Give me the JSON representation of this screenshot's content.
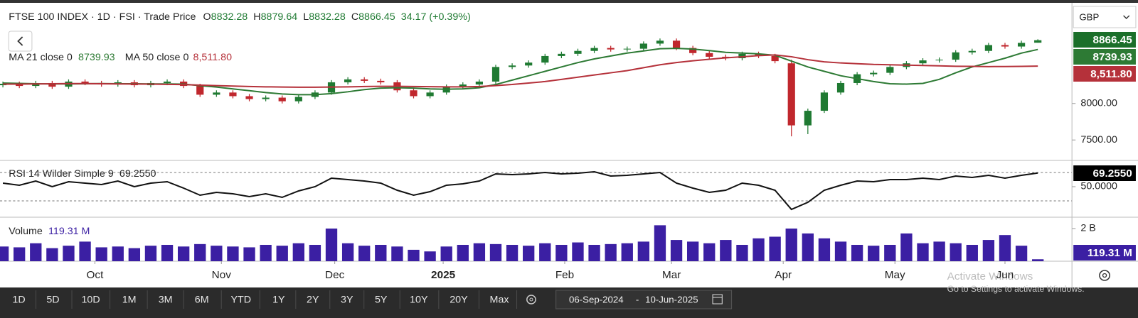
{
  "chart_data": [
    {
      "type": "candlestick",
      "title": "FTSE 100 INDEX · 1D · FSI  · Trade Price",
      "ohlc_labels": [
        "O",
        "H",
        "L",
        "C"
      ],
      "change": "34.17 (+0.39%)",
      "currency": "GBP",
      "colors": {
        "up": "#1f7a32",
        "down": "#c0272d"
      },
      "ylim": [
        7220,
        9320
      ],
      "yticks": [
        {
          "value": 8000,
          "label": "8000.00"
        },
        {
          "value": 7500,
          "label": "7500.00"
        }
      ],
      "open": [
        8250,
        8270,
        8240,
        8280,
        8230,
        8300,
        8280,
        8260,
        8290,
        8250,
        8280,
        8300,
        8240,
        8120,
        8150,
        8100,
        8060,
        8080,
        8030,
        8090,
        8150,
        8290,
        8330,
        8310,
        8290,
        8180,
        8100,
        8150,
        8230,
        8260,
        8300,
        8500,
        8520,
        8560,
        8650,
        8680,
        8720,
        8760,
        8740,
        8750,
        8820,
        8860,
        8760,
        8690,
        8640,
        8620,
        8680,
        8650,
        8550,
        7700,
        7900,
        8150,
        8280,
        8400,
        8420,
        8500,
        8550,
        8590,
        8600,
        8700,
        8720,
        8800,
        8780,
        8832.28
      ],
      "high": [
        8300,
        8300,
        8310,
        8310,
        8330,
        8330,
        8310,
        8320,
        8320,
        8310,
        8330,
        8330,
        8270,
        8180,
        8180,
        8130,
        8110,
        8110,
        8120,
        8180,
        8320,
        8360,
        8360,
        8340,
        8320,
        8210,
        8180,
        8260,
        8290,
        8330,
        8530,
        8550,
        8590,
        8680,
        8710,
        8750,
        8790,
        8790,
        8780,
        8850,
        8890,
        8890,
        8790,
        8720,
        8670,
        8710,
        8710,
        8680,
        8600,
        7930,
        8180,
        8310,
        8430,
        8450,
        8530,
        8580,
        8620,
        8630,
        8730,
        8750,
        8830,
        8830,
        8860,
        8879.64
      ],
      "low": [
        8220,
        8210,
        8210,
        8200,
        8200,
        8250,
        8230,
        8230,
        8220,
        8220,
        8250,
        8210,
        8090,
        8090,
        8070,
        8030,
        8030,
        8000,
        8000,
        8060,
        8120,
        8260,
        8280,
        8260,
        8150,
        8070,
        8070,
        8120,
        8200,
        8230,
        8270,
        8470,
        8490,
        8530,
        8620,
        8650,
        8690,
        8710,
        8710,
        8720,
        8790,
        8730,
        8660,
        8610,
        8590,
        8590,
        8620,
        8550,
        7550,
        7580,
        7870,
        8120,
        8250,
        8370,
        8390,
        8470,
        8520,
        8560,
        8570,
        8670,
        8690,
        8750,
        8750,
        8832.28
      ],
      "close": [
        8270,
        8240,
        8280,
        8230,
        8300,
        8280,
        8260,
        8290,
        8250,
        8280,
        8300,
        8240,
        8120,
        8150,
        8100,
        8060,
        8080,
        8030,
        8090,
        8150,
        8290,
        8330,
        8310,
        8290,
        8180,
        8100,
        8150,
        8230,
        8260,
        8300,
        8500,
        8520,
        8560,
        8650,
        8680,
        8720,
        8760,
        8740,
        8750,
        8820,
        8860,
        8760,
        8690,
        8640,
        8620,
        8680,
        8650,
        8580,
        7700,
        7900,
        8150,
        8280,
        8400,
        8420,
        8500,
        8550,
        8590,
        8600,
        8700,
        8720,
        8800,
        8780,
        8830,
        8866.45
      ],
      "overlays": [
        {
          "name": "MA 21 close 0",
          "color": "#2d7a34",
          "values": [
            8280,
            8275,
            8270,
            8268,
            8268,
            8270,
            8272,
            8270,
            8270,
            8268,
            8268,
            8265,
            8245,
            8225,
            8200,
            8175,
            8150,
            8130,
            8120,
            8120,
            8135,
            8160,
            8190,
            8210,
            8215,
            8210,
            8200,
            8195,
            8200,
            8215,
            8260,
            8320,
            8380,
            8440,
            8500,
            8560,
            8610,
            8650,
            8690,
            8720,
            8750,
            8755,
            8745,
            8725,
            8700,
            8690,
            8680,
            8660,
            8580,
            8500,
            8440,
            8380,
            8340,
            8300,
            8270,
            8265,
            8275,
            8330,
            8420,
            8500,
            8560,
            8620,
            8690,
            8739.93
          ]
        },
        {
          "name": "MA 50 close 0",
          "color": "#b5313a",
          "last_label": "8,511.80",
          "values": [
            8265,
            8265,
            8268,
            8270,
            8272,
            8272,
            8270,
            8268,
            8266,
            8265,
            8262,
            8258,
            8252,
            8245,
            8238,
            8232,
            8228,
            8225,
            8222,
            8222,
            8225,
            8228,
            8232,
            8235,
            8235,
            8232,
            8230,
            8228,
            8228,
            8232,
            8245,
            8260,
            8280,
            8300,
            8330,
            8360,
            8390,
            8420,
            8450,
            8490,
            8530,
            8560,
            8585,
            8605,
            8625,
            8640,
            8655,
            8665,
            8640,
            8600,
            8570,
            8555,
            8545,
            8535,
            8530,
            8525,
            8520,
            8515,
            8510,
            8508,
            8505,
            8506,
            8508,
            8511.8
          ]
        }
      ]
    },
    {
      "type": "line",
      "name": "RSI 14 Wilder Simple 9",
      "color": "#111111",
      "last_label": "69.2550",
      "ylim": [
        10,
        80
      ],
      "yticks": [
        {
          "value": 50,
          "label": "50.0000"
        }
      ],
      "levels": [
        70,
        30
      ],
      "values": [
        55,
        52,
        58,
        50,
        57,
        55,
        53,
        58,
        50,
        55,
        57,
        48,
        38,
        42,
        40,
        36,
        40,
        35,
        44,
        50,
        62,
        60,
        58,
        55,
        45,
        38,
        43,
        52,
        54,
        58,
        68,
        67,
        68,
        70,
        68,
        69,
        71,
        65,
        66,
        68,
        70,
        55,
        48,
        42,
        45,
        55,
        52,
        45,
        18,
        28,
        45,
        52,
        58,
        57,
        60,
        60,
        62,
        60,
        65,
        63,
        66,
        62,
        66,
        69.255
      ]
    },
    {
      "type": "bar",
      "name": "Volume",
      "color": "#3b1fa3",
      "last_label": "119.31 M",
      "ylim": [
        0,
        2520
      ],
      "yticks": [
        {
          "value": 2000,
          "label": "2 B"
        }
      ],
      "xticks": [
        {
          "value": 5.6,
          "label": "Oct"
        },
        {
          "value": 13.3,
          "label": "Nov"
        },
        {
          "value": 20.2,
          "label": "Dec"
        },
        {
          "value": 26.8,
          "label": "2025"
        },
        {
          "value": 34.2,
          "label": "Feb"
        },
        {
          "value": 40.7,
          "label": "Mar"
        },
        {
          "value": 47.5,
          "label": "Apr"
        },
        {
          "value": 54.3,
          "label": "May"
        },
        {
          "value": 61.0,
          "label": "Jun"
        }
      ],
      "values": [
        900,
        850,
        1100,
        800,
        950,
        1200,
        850,
        900,
        800,
        950,
        1000,
        900,
        1050,
        950,
        900,
        850,
        1000,
        950,
        1100,
        1000,
        2000,
        1100,
        950,
        1000,
        900,
        700,
        600,
        900,
        1000,
        1100,
        1050,
        1000,
        950,
        1100,
        1000,
        1150,
        1000,
        1050,
        1100,
        1200,
        2200,
        1300,
        1200,
        1100,
        1300,
        1000,
        1400,
        1500,
        2000,
        1700,
        1400,
        1200,
        1000,
        950,
        1000,
        1700,
        1100,
        1200,
        1100,
        1000,
        1300,
        1600,
        950,
        119.31
      ]
    }
  ],
  "toolbar": {
    "ranges": [
      "1D",
      "5D",
      "10D",
      "1M",
      "3M",
      "6M",
      "YTD",
      "1Y",
      "2Y",
      "3Y",
      "5Y",
      "10Y",
      "20Y",
      "Max"
    ],
    "start_date": "06-Sep-2024",
    "separator": "-",
    "end_date": "10-Jun-2025"
  },
  "watermark": [
    "Activate Windows",
    "Go to Settings to activate Windows."
  ]
}
